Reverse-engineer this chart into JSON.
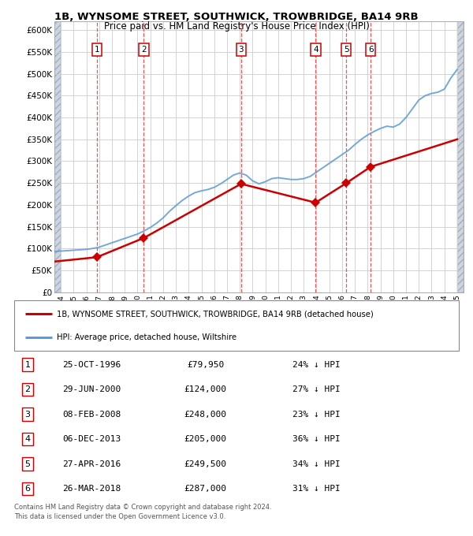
{
  "title1": "1B, WYNSOME STREET, SOUTHWICK, TROWBRIDGE, BA14 9RB",
  "title2": "Price paid vs. HM Land Registry's House Price Index (HPI)",
  "legend_line1": "1B, WYNSOME STREET, SOUTHWICK, TROWBRIDGE, BA14 9RB (detached house)",
  "legend_line2": "HPI: Average price, detached house, Wiltshire",
  "footer1": "Contains HM Land Registry data © Crown copyright and database right 2024.",
  "footer2": "This data is licensed under the Open Government Licence v3.0.",
  "transactions": [
    {
      "num": 1,
      "date_label": "25-OCT-1996",
      "price": 79950,
      "pct": "24% ↓ HPI",
      "x": 1996.82
    },
    {
      "num": 2,
      "date_label": "29-JUN-2000",
      "price": 124000,
      "pct": "27% ↓ HPI",
      "x": 2000.49
    },
    {
      "num": 3,
      "date_label": "08-FEB-2008",
      "price": 248000,
      "pct": "23% ↓ HPI",
      "x": 2008.1
    },
    {
      "num": 4,
      "date_label": "06-DEC-2013",
      "price": 205000,
      "pct": "36% ↓ HPI",
      "x": 2013.93
    },
    {
      "num": 5,
      "date_label": "27-APR-2016",
      "price": 249500,
      "pct": "34% ↓ HPI",
      "x": 2016.32
    },
    {
      "num": 6,
      "date_label": "26-MAR-2018",
      "price": 287000,
      "pct": "31% ↓ HPI",
      "x": 2018.23
    }
  ],
  "price_color": "#cc0000",
  "hpi_line_color": "#5b9bd5",
  "ylim_min": 0,
  "ylim_max": 620000,
  "xlim_min": 1993.5,
  "xlim_max": 2025.5,
  "yticks": [
    0,
    50000,
    100000,
    150000,
    200000,
    250000,
    300000,
    350000,
    400000,
    450000,
    500000,
    550000,
    600000
  ],
  "ytick_labels": [
    "£0",
    "£50K",
    "£100K",
    "£150K",
    "£200K",
    "£250K",
    "£300K",
    "£350K",
    "£400K",
    "£450K",
    "£500K",
    "£550K",
    "£600K"
  ],
  "hpi_x": [
    1993.5,
    1994.0,
    1994.5,
    1995.0,
    1995.5,
    1996.0,
    1996.5,
    1997.0,
    1997.5,
    1998.0,
    1998.5,
    1999.0,
    1999.5,
    2000.0,
    2000.5,
    2001.0,
    2001.5,
    2002.0,
    2002.5,
    2003.0,
    2003.5,
    2004.0,
    2004.5,
    2005.0,
    2005.5,
    2006.0,
    2006.5,
    2007.0,
    2007.5,
    2008.0,
    2008.5,
    2009.0,
    2009.5,
    2010.0,
    2010.5,
    2011.0,
    2011.5,
    2012.0,
    2012.5,
    2013.0,
    2013.5,
    2014.0,
    2014.5,
    2015.0,
    2015.5,
    2016.0,
    2016.5,
    2017.0,
    2017.5,
    2018.0,
    2018.5,
    2019.0,
    2019.5,
    2020.0,
    2020.5,
    2021.0,
    2021.5,
    2022.0,
    2022.5,
    2023.0,
    2023.5,
    2024.0,
    2024.5,
    2025.0
  ],
  "hpi_y": [
    93000,
    94000,
    95000,
    96000,
    97000,
    98000,
    100000,
    103000,
    108000,
    113000,
    118000,
    123000,
    128000,
    133000,
    140000,
    148000,
    158000,
    170000,
    185000,
    198000,
    210000,
    220000,
    228000,
    232000,
    235000,
    240000,
    248000,
    258000,
    268000,
    273000,
    268000,
    255000,
    248000,
    253000,
    260000,
    262000,
    260000,
    258000,
    258000,
    260000,
    265000,
    275000,
    285000,
    295000,
    305000,
    315000,
    325000,
    338000,
    350000,
    360000,
    368000,
    375000,
    380000,
    378000,
    385000,
    400000,
    420000,
    440000,
    450000,
    455000,
    458000,
    465000,
    490000,
    510000
  ],
  "price_x": [
    1993.5,
    1996.82,
    2000.49,
    2008.1,
    2013.93,
    2016.32,
    2018.23,
    2025.0
  ],
  "price_y": [
    70000,
    79950,
    124000,
    248000,
    205000,
    249500,
    287000,
    350000
  ],
  "hatch_left_end": 1994.0,
  "hatch_right_start": 2025.0
}
